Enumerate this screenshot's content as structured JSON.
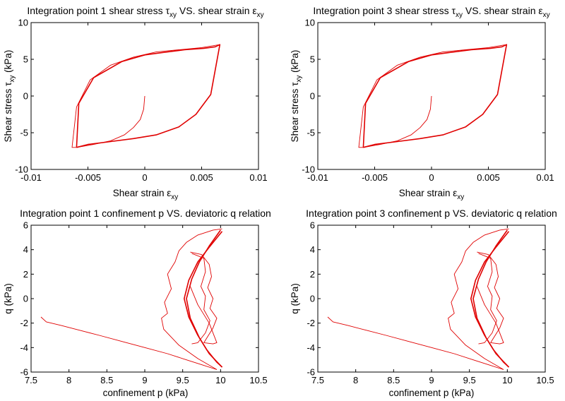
{
  "chart_data": [
    {
      "type": "line",
      "title_prefix": "Integration point 1 shear stress ",
      "title_tau": "τ",
      "title_sub1": "xy",
      "title_mid": " VS. shear strain ",
      "title_eps": "ε",
      "title_sub2": "xy",
      "xlabel_text": "Shear strain ",
      "xlabel_sym": "ε",
      "xlabel_sub": "xy",
      "ylabel_text": "Shear stress ",
      "ylabel_sym": "τ",
      "ylabel_sub": "xy",
      "ylabel_unit": " (kPa)",
      "xlim": [
        -0.01,
        0.01
      ],
      "ylim": [
        -10,
        10
      ],
      "xticks": [
        "-0.01",
        "-0.005",
        "0",
        "0.005",
        "0.01"
      ],
      "yticks": [
        "10",
        "5",
        "0",
        "-5",
        "-10"
      ],
      "grid": false,
      "series": [
        {
          "color": "#e00000",
          "kind": "initial",
          "x": [
            0,
            -0.0001,
            -0.0004,
            -0.001,
            -0.0018,
            -0.003,
            -0.0045,
            -0.006
          ],
          "y": [
            0,
            -1.8,
            -3.2,
            -4.3,
            -5.3,
            -6.1,
            -6.6,
            -7.0
          ]
        },
        {
          "color": "#e00000",
          "kind": "loop",
          "w": 1.6,
          "x": [
            -0.006,
            -0.005,
            -0.003,
            -0.001,
            0.001,
            0.003,
            0.0045,
            0.0058,
            0.0066,
            0.0062,
            0.0052,
            0.0035,
            0.0015,
            0,
            -0.002,
            -0.0045,
            -0.0058,
            -0.006
          ],
          "y": [
            -7.0,
            -6.6,
            -6.2,
            -5.8,
            -5.3,
            -4.2,
            -2.5,
            0.2,
            7.0,
            6.7,
            6.5,
            6.3,
            5.9,
            5.6,
            4.7,
            2.5,
            -1.0,
            -7.0
          ]
        },
        {
          "color": "#e00000",
          "kind": "loop",
          "x": [
            0.0066,
            0.005,
            0.003,
            0.001,
            -0.001,
            -0.003,
            -0.0048,
            -0.006,
            -0.0064,
            -0.006
          ],
          "y": [
            7.0,
            6.6,
            6.3,
            6.0,
            5.3,
            4.2,
            2.2,
            -1.5,
            -7.0,
            -7.0
          ]
        }
      ]
    },
    {
      "type": "line",
      "title_prefix": "Integration point 3 shear stress ",
      "title_tau": "τ",
      "title_sub1": "xy",
      "title_mid": " VS. shear strain ",
      "title_eps": "ε",
      "title_sub2": "xy",
      "xlabel_text": "Shear strain ",
      "xlabel_sym": "ε",
      "xlabel_sub": "xy",
      "ylabel_text": "Shear stress ",
      "ylabel_sym": "τ",
      "ylabel_sub": "xy",
      "ylabel_unit": " (kPa)",
      "xlim": [
        -0.01,
        0.01
      ],
      "ylim": [
        -10,
        10
      ],
      "xticks": [
        "-0.01",
        "-0.005",
        "0",
        "0.005",
        "0.01"
      ],
      "yticks": [
        "10",
        "5",
        "0",
        "-5",
        "-10"
      ],
      "grid": false,
      "series": [
        {
          "color": "#e00000",
          "kind": "initial",
          "x": [
            0,
            -0.0001,
            -0.0004,
            -0.001,
            -0.0018,
            -0.003,
            -0.0045,
            -0.006
          ],
          "y": [
            0,
            -1.8,
            -3.2,
            -4.3,
            -5.3,
            -6.1,
            -6.6,
            -7.0
          ]
        },
        {
          "color": "#e00000",
          "kind": "loop",
          "w": 1.6,
          "x": [
            -0.006,
            -0.005,
            -0.003,
            -0.001,
            0.001,
            0.003,
            0.0045,
            0.0058,
            0.0066,
            0.0062,
            0.0052,
            0.0035,
            0.0015,
            0,
            -0.002,
            -0.0045,
            -0.0058,
            -0.006
          ],
          "y": [
            -7.0,
            -6.6,
            -6.2,
            -5.8,
            -5.3,
            -4.2,
            -2.5,
            0.2,
            7.0,
            6.7,
            6.5,
            6.3,
            5.9,
            5.6,
            4.7,
            2.5,
            -1.0,
            -7.0
          ]
        },
        {
          "color": "#e00000",
          "kind": "loop",
          "x": [
            0.0066,
            0.005,
            0.003,
            0.001,
            -0.001,
            -0.003,
            -0.0048,
            -0.006,
            -0.0064,
            -0.006
          ],
          "y": [
            7.0,
            6.6,
            6.3,
            6.0,
            5.3,
            4.2,
            2.2,
            -1.5,
            -7.0,
            -7.0
          ]
        }
      ]
    },
    {
      "type": "line",
      "title": "Integration point 1 confinement p VS. deviatoric q relation",
      "xlabel": "confinement p (kPa)",
      "ylabel": "q (kPa)",
      "xlim": [
        7.5,
        10.5
      ],
      "ylim": [
        -6,
        6
      ],
      "xticks": [
        "7.5",
        "8",
        "8.5",
        "9",
        "9.5",
        "10",
        "10.5"
      ],
      "yticks": [
        "6",
        "4",
        "2",
        "0",
        "-2",
        "-4",
        "-6"
      ],
      "grid": false,
      "series": [
        {
          "color": "#e00000",
          "kind": "initial",
          "x": [
            7.63,
            7.7,
            7.9,
            8.15,
            8.4,
            8.7,
            9.0,
            9.3,
            9.55,
            9.75,
            9.95
          ],
          "y": [
            -1.5,
            -1.9,
            -2.2,
            -2.6,
            -3.0,
            -3.5,
            -4.0,
            -4.5,
            -5.0,
            -5.4,
            -5.8
          ]
        },
        {
          "color": "#e00000",
          "kind": "loop",
          "x": [
            9.95,
            9.7,
            9.45,
            9.25,
            9.22,
            9.3,
            9.26,
            9.35,
            9.3,
            9.4,
            9.45,
            9.55,
            9.7,
            9.9,
            10.02
          ],
          "y": [
            -5.8,
            -4.9,
            -3.8,
            -2.5,
            -1.6,
            -1.2,
            -0.3,
            0.8,
            2.0,
            3.0,
            3.9,
            4.6,
            5.2,
            5.6,
            5.7
          ]
        },
        {
          "color": "#e00000",
          "kind": "loop",
          "w": 1.6,
          "x": [
            10.02,
            9.85,
            9.7,
            9.58,
            9.52,
            9.58,
            9.7,
            9.82,
            9.95,
            10.02
          ],
          "y": [
            5.5,
            4.2,
            3.0,
            1.5,
            0.0,
            -1.5,
            -3.0,
            -4.2,
            -5.2,
            -5.6
          ]
        },
        {
          "color": "#e00000",
          "kind": "loop",
          "w": 1.6,
          "x": [
            10.02,
            9.85,
            9.72,
            9.6,
            9.55,
            9.62,
            9.72,
            9.85,
            10.0
          ],
          "y": [
            -5.6,
            -4.5,
            -3.2,
            -1.6,
            0.0,
            1.6,
            3.0,
            4.3,
            5.6
          ]
        },
        {
          "color": "#e00000",
          "kind": "loop",
          "x": [
            9.6,
            9.75,
            9.85,
            9.88,
            9.83,
            9.9,
            9.86,
            9.95,
            9.9,
            9.78,
            9.9,
            9.95,
            9.85,
            9.7,
            9.6
          ],
          "y": [
            3.8,
            3.6,
            2.8,
            1.8,
            0.9,
            0.0,
            -0.8,
            -1.6,
            -2.4,
            -3.6,
            -3.7,
            -3.6,
            -2.0,
            -0.5,
            1.0
          ]
        },
        {
          "color": "#e00000",
          "kind": "loop",
          "x": [
            9.62,
            9.78,
            9.8,
            9.74,
            9.8,
            9.78,
            9.86,
            9.8,
            9.7,
            9.62
          ],
          "y": [
            3.7,
            3.3,
            2.2,
            1.0,
            0.2,
            -0.9,
            -1.8,
            -2.8,
            -3.6,
            -3.7
          ]
        }
      ]
    },
    {
      "type": "line",
      "title": "Integration point 3 confinement p VS. deviatoric q relation",
      "xlabel": "confinement p (kPa)",
      "ylabel": "q (kPa)",
      "xlim": [
        7.5,
        10.5
      ],
      "ylim": [
        -6,
        6
      ],
      "xticks": [
        "7.5",
        "8",
        "8.5",
        "9",
        "9.5",
        "10",
        "10.5"
      ],
      "yticks": [
        "6",
        "4",
        "2",
        "0",
        "-2",
        "-4",
        "-6"
      ],
      "grid": false,
      "series": [
        {
          "color": "#e00000",
          "kind": "initial",
          "x": [
            7.63,
            7.7,
            7.9,
            8.15,
            8.4,
            8.7,
            9.0,
            9.3,
            9.55,
            9.75,
            9.95
          ],
          "y": [
            -1.5,
            -1.9,
            -2.2,
            -2.6,
            -3.0,
            -3.5,
            -4.0,
            -4.5,
            -5.0,
            -5.4,
            -5.8
          ]
        },
        {
          "color": "#e00000",
          "kind": "loop",
          "x": [
            9.95,
            9.7,
            9.45,
            9.25,
            9.22,
            9.3,
            9.26,
            9.35,
            9.3,
            9.4,
            9.45,
            9.55,
            9.7,
            9.9,
            10.02
          ],
          "y": [
            -5.8,
            -4.9,
            -3.8,
            -2.5,
            -1.6,
            -1.2,
            -0.3,
            0.8,
            2.0,
            3.0,
            3.9,
            4.6,
            5.2,
            5.6,
            5.7
          ]
        },
        {
          "color": "#e00000",
          "kind": "loop",
          "w": 1.6,
          "x": [
            10.02,
            9.85,
            9.7,
            9.58,
            9.52,
            9.58,
            9.7,
            9.82,
            9.95,
            10.02
          ],
          "y": [
            5.5,
            4.2,
            3.0,
            1.5,
            0.0,
            -1.5,
            -3.0,
            -4.2,
            -5.2,
            -5.6
          ]
        },
        {
          "color": "#e00000",
          "kind": "loop",
          "w": 1.6,
          "x": [
            10.02,
            9.85,
            9.72,
            9.6,
            9.55,
            9.62,
            9.72,
            9.85,
            10.0
          ],
          "y": [
            -5.6,
            -4.5,
            -3.2,
            -1.6,
            0.0,
            1.6,
            3.0,
            4.3,
            5.6
          ]
        },
        {
          "color": "#e00000",
          "kind": "loop",
          "x": [
            9.6,
            9.75,
            9.85,
            9.88,
            9.83,
            9.9,
            9.86,
            9.95,
            9.9,
            9.78,
            9.9,
            9.95,
            9.85,
            9.7,
            9.6
          ],
          "y": [
            3.8,
            3.6,
            2.8,
            1.8,
            0.9,
            0.0,
            -0.8,
            -1.6,
            -2.4,
            -3.6,
            -3.7,
            -3.6,
            -2.0,
            -0.5,
            1.0
          ]
        },
        {
          "color": "#e00000",
          "kind": "loop",
          "x": [
            9.62,
            9.78,
            9.8,
            9.74,
            9.8,
            9.78,
            9.86,
            9.8,
            9.7,
            9.62
          ],
          "y": [
            3.7,
            3.3,
            2.2,
            1.0,
            0.2,
            -0.9,
            -1.8,
            -2.8,
            -3.6,
            -3.7
          ]
        }
      ]
    }
  ]
}
